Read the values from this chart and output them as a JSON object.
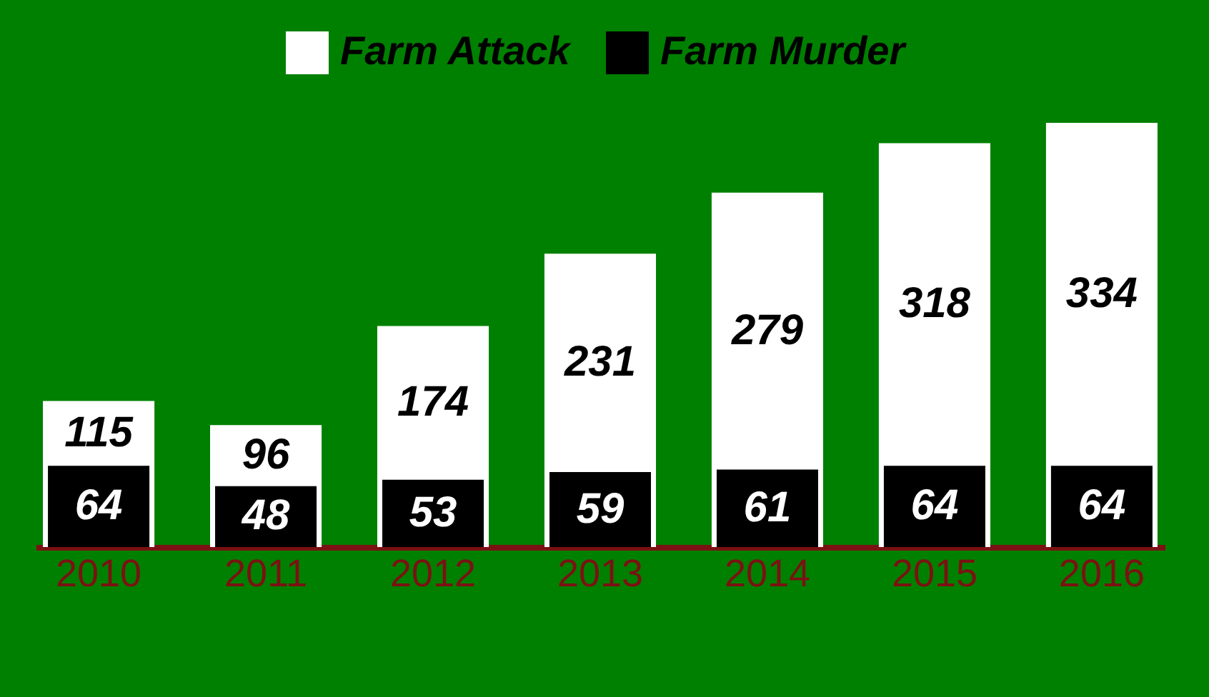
{
  "chart_data": {
    "type": "bar",
    "categories": [
      "2010",
      "2011",
      "2012",
      "2013",
      "2014",
      "2015",
      "2016"
    ],
    "series": [
      {
        "name": "Farm Attack",
        "color": "#ffffff",
        "values": [
          115,
          96,
          174,
          231,
          279,
          318,
          334
        ]
      },
      {
        "name": "Farm Murder",
        "color": "#000000",
        "values": [
          64,
          48,
          53,
          59,
          61,
          64,
          64
        ]
      }
    ],
    "data_labels": true,
    "legend": "top",
    "tick_labels": "x"
  }
}
